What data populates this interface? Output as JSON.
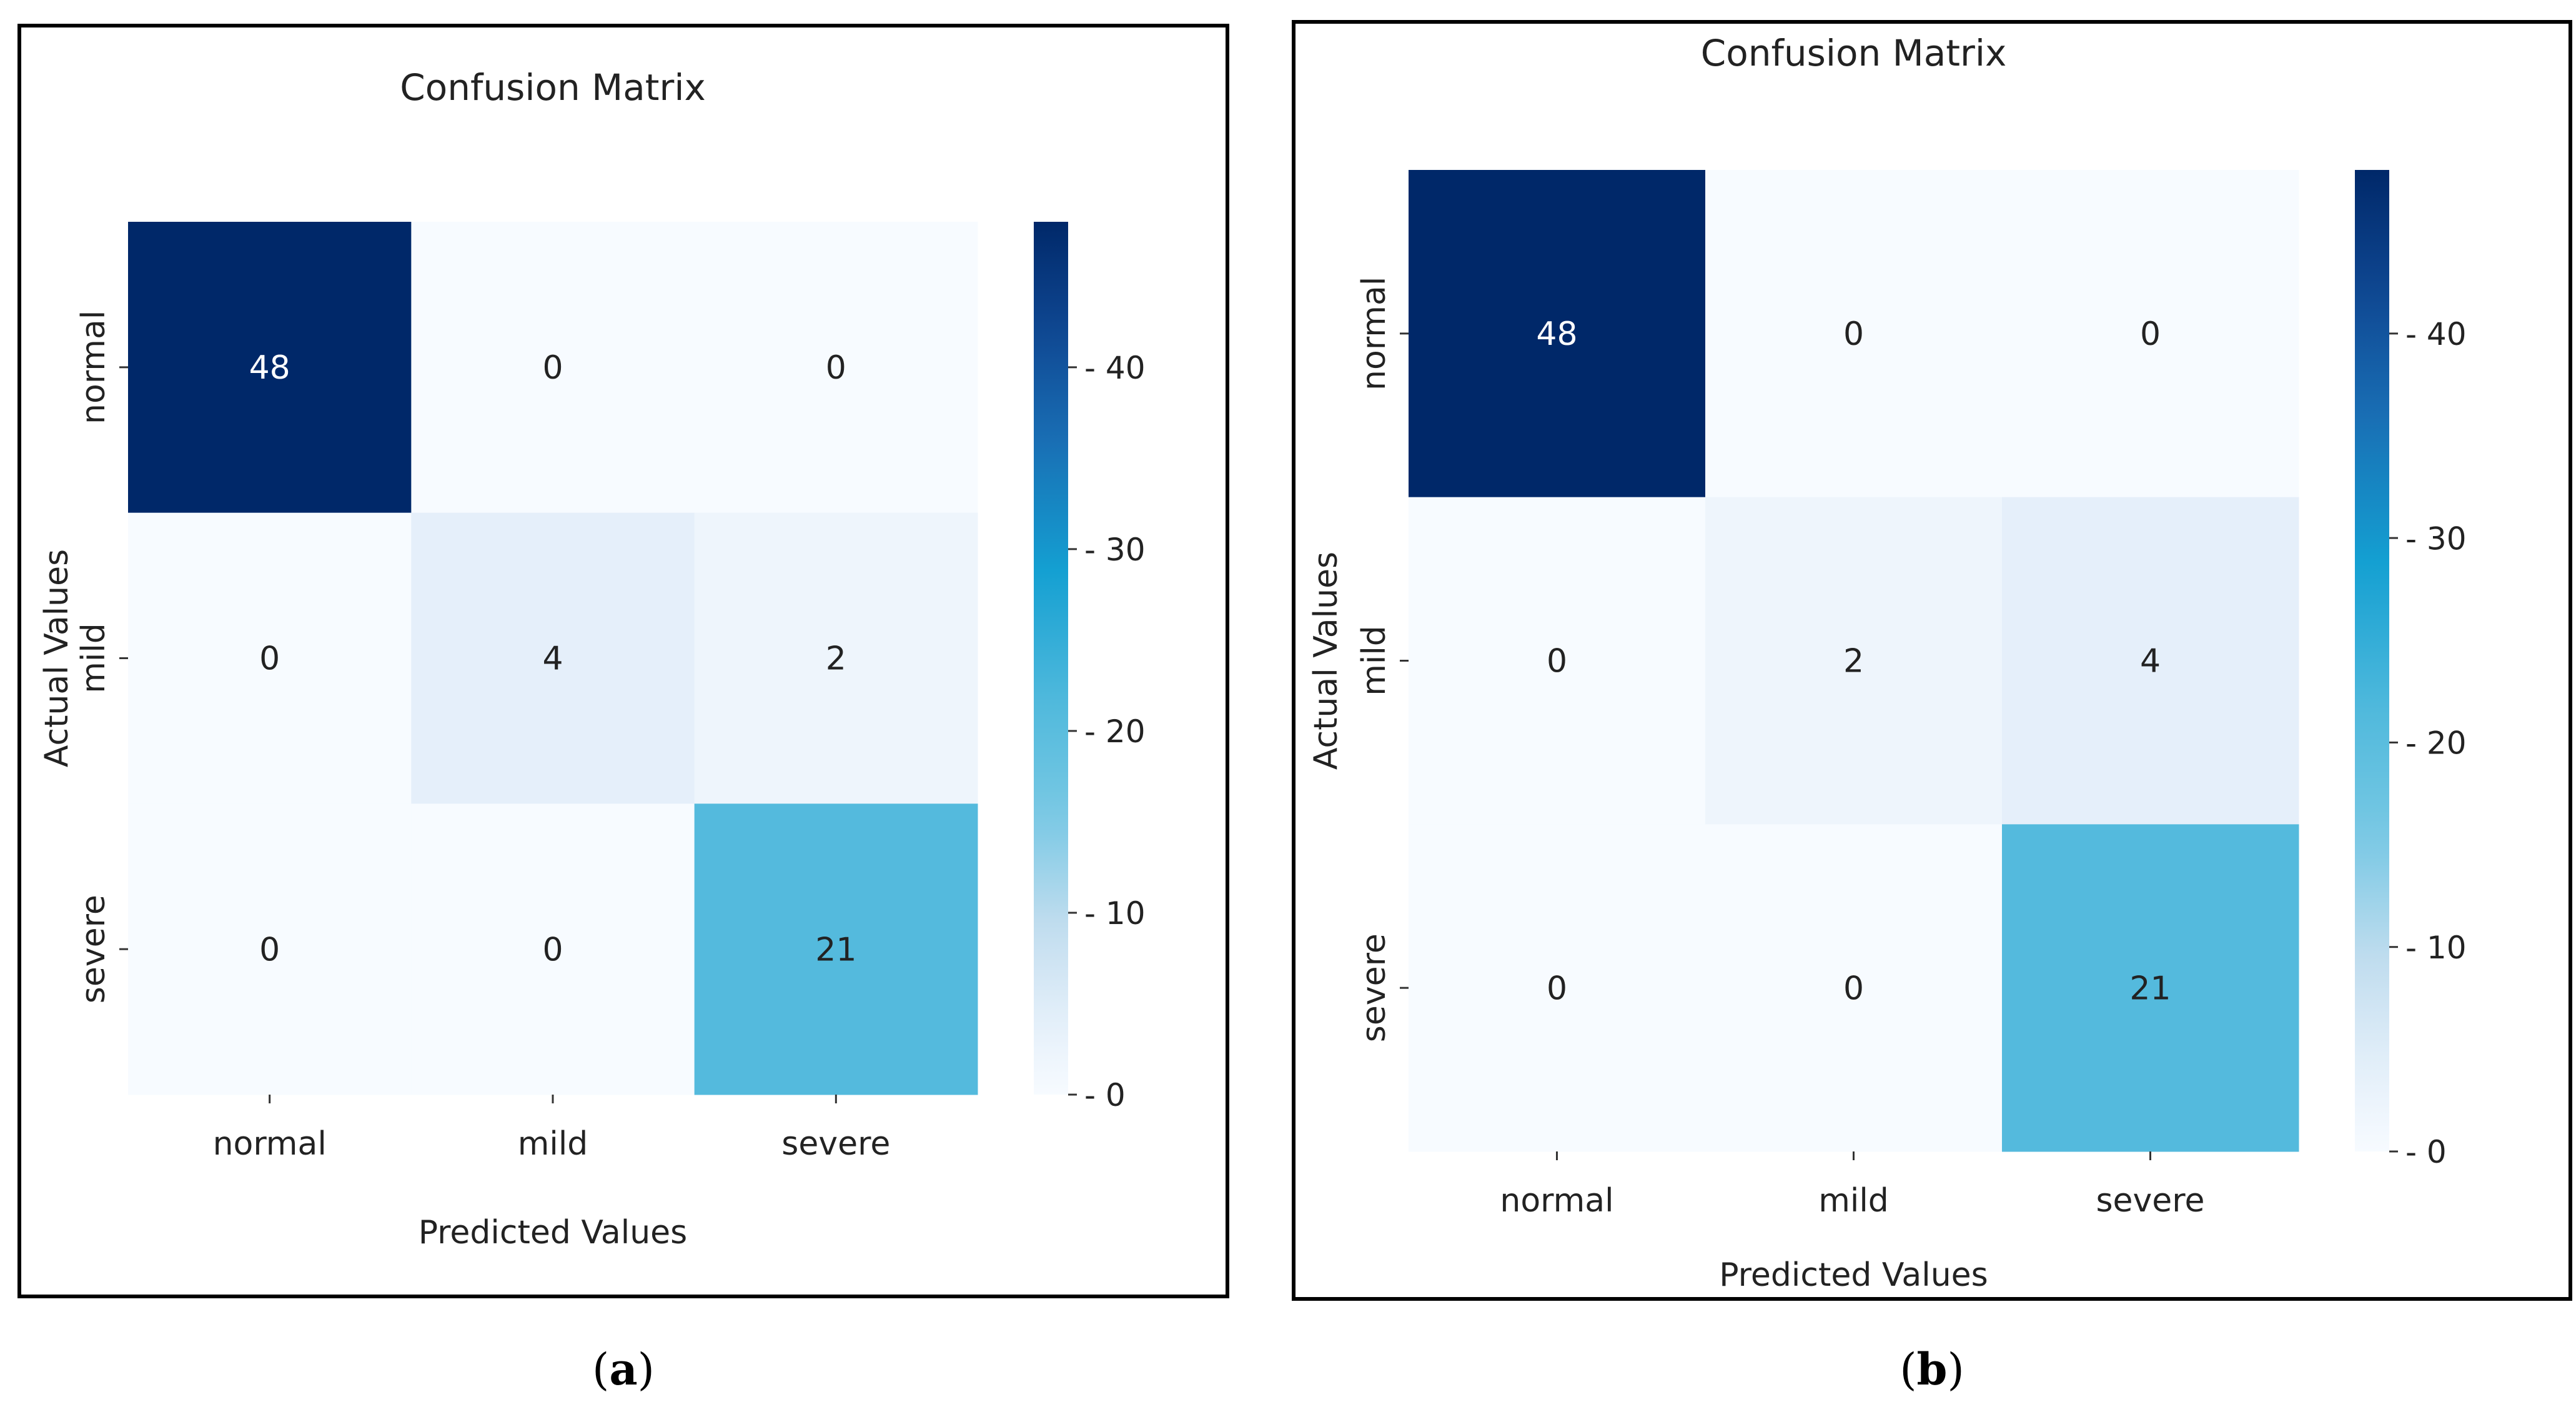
{
  "chart_data": [
    {
      "type": "heatmap",
      "title": "Confusion Matrix",
      "xlabel": "Predicted Values",
      "ylabel": "Actual Values",
      "x_categories": [
        "normal",
        "mild",
        "severe"
      ],
      "y_categories": [
        "normal",
        "mild",
        "severe"
      ],
      "values": [
        [
          48,
          0,
          0
        ],
        [
          0,
          4,
          2
        ],
        [
          0,
          0,
          21
        ]
      ],
      "colorbar": {
        "min": 0,
        "max": 48,
        "ticks": [
          0,
          10,
          20,
          30,
          40
        ]
      },
      "colormap": "Blues",
      "caption": {
        "open": "(",
        "label": "a",
        "close": ")"
      }
    },
    {
      "type": "heatmap",
      "title": "Confusion Matrix",
      "xlabel": "Predicted Values",
      "ylabel": "Actual Values",
      "x_categories": [
        "normal",
        "mild",
        "severe"
      ],
      "y_categories": [
        "normal",
        "mild",
        "severe"
      ],
      "values": [
        [
          48,
          0,
          0
        ],
        [
          0,
          2,
          4
        ],
        [
          0,
          0,
          21
        ]
      ],
      "colorbar": {
        "min": 0,
        "max": 48,
        "ticks": [
          0,
          10,
          20,
          30,
          40
        ]
      },
      "colormap": "Blues",
      "caption": {
        "open": "(",
        "label": "b",
        "close": ")"
      }
    }
  ]
}
